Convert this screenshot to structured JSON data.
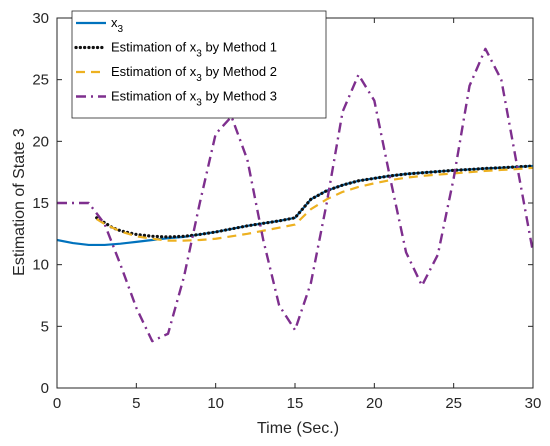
{
  "chart_data": {
    "type": "line",
    "title": "",
    "xlabel": "Time (Sec.)",
    "ylabel": "Estimation of State 3",
    "xlim": [
      0,
      30
    ],
    "ylim": [
      0,
      30
    ],
    "xticks": [
      0,
      5,
      10,
      15,
      20,
      25,
      30
    ],
    "yticks": [
      0,
      5,
      10,
      15,
      20,
      25,
      30
    ],
    "grid": false,
    "legend_position": "top-left",
    "series": [
      {
        "name": "x3",
        "legend_main": "x",
        "legend_sub": "3",
        "legend_after": "",
        "color": "#0072BD",
        "style": "solid",
        "points": [
          [
            0,
            12.0
          ],
          [
            1,
            11.75
          ],
          [
            2,
            11.6
          ],
          [
            3,
            11.6
          ],
          [
            4,
            11.7
          ],
          [
            5,
            11.85
          ],
          [
            6,
            12.0
          ],
          [
            7,
            12.15
          ],
          [
            8,
            12.25
          ],
          [
            9,
            12.45
          ],
          [
            10,
            12.65
          ],
          [
            11,
            12.9
          ],
          [
            12,
            13.15
          ],
          [
            13,
            13.35
          ],
          [
            14,
            13.55
          ],
          [
            15,
            13.8
          ],
          [
            16,
            15.3
          ],
          [
            17,
            16.0
          ],
          [
            18,
            16.45
          ],
          [
            19,
            16.8
          ],
          [
            20,
            17.0
          ],
          [
            21,
            17.2
          ],
          [
            22,
            17.35
          ],
          [
            23,
            17.45
          ],
          [
            24,
            17.55
          ],
          [
            25,
            17.65
          ],
          [
            26,
            17.72
          ],
          [
            27,
            17.8
          ],
          [
            28,
            17.86
          ],
          [
            29,
            17.93
          ],
          [
            30,
            18.0
          ]
        ]
      },
      {
        "name": "Estimation of x3 by Method 1",
        "legend_main": "Estimation of x",
        "legend_sub": "3",
        "legend_after": " by Method 1",
        "color": "#111111",
        "style": "dotted",
        "points": [
          [
            2.5,
            13.8
          ],
          [
            3,
            13.4
          ],
          [
            3.5,
            13.0
          ],
          [
            4,
            12.75
          ],
          [
            5,
            12.45
          ],
          [
            6,
            12.3
          ],
          [
            7,
            12.25
          ],
          [
            8,
            12.3
          ],
          [
            9,
            12.45
          ],
          [
            10,
            12.65
          ],
          [
            11,
            12.9
          ],
          [
            12,
            13.15
          ],
          [
            13,
            13.35
          ],
          [
            14,
            13.55
          ],
          [
            15,
            13.8
          ],
          [
            16,
            15.3
          ],
          [
            17,
            16.0
          ],
          [
            18,
            16.45
          ],
          [
            19,
            16.8
          ],
          [
            20,
            17.0
          ],
          [
            21,
            17.2
          ],
          [
            22,
            17.35
          ],
          [
            23,
            17.45
          ],
          [
            24,
            17.55
          ],
          [
            25,
            17.65
          ],
          [
            26,
            17.72
          ],
          [
            27,
            17.8
          ],
          [
            28,
            17.86
          ],
          [
            29,
            17.93
          ],
          [
            30,
            18.0
          ]
        ]
      },
      {
        "name": "Estimation of x3 by Method 2",
        "legend_main": "Estimation of x",
        "legend_sub": "3",
        "legend_after": " by Method 2",
        "color": "#EDB120",
        "style": "dashed",
        "points": [
          [
            2.5,
            13.7
          ],
          [
            3,
            13.3
          ],
          [
            4,
            12.7
          ],
          [
            5,
            12.3
          ],
          [
            6,
            12.1
          ],
          [
            7,
            11.95
          ],
          [
            8,
            11.95
          ],
          [
            9,
            12.0
          ],
          [
            10,
            12.1
          ],
          [
            11,
            12.3
          ],
          [
            12,
            12.5
          ],
          [
            13,
            12.75
          ],
          [
            14,
            13.0
          ],
          [
            15,
            13.25
          ],
          [
            16,
            14.5
          ],
          [
            17,
            15.3
          ],
          [
            18,
            15.9
          ],
          [
            19,
            16.3
          ],
          [
            20,
            16.6
          ],
          [
            21,
            16.85
          ],
          [
            22,
            17.05
          ],
          [
            23,
            17.2
          ],
          [
            24,
            17.3
          ],
          [
            25,
            17.4
          ],
          [
            26,
            17.5
          ],
          [
            27,
            17.6
          ],
          [
            28,
            17.68
          ],
          [
            29,
            17.75
          ],
          [
            30,
            17.85
          ]
        ]
      },
      {
        "name": "Estimation of x3 by Method 3",
        "legend_main": "Estimation of x",
        "legend_sub": "3",
        "legend_after": " by Method 3",
        "color": "#7E2F8E",
        "style": "dashdot",
        "points": [
          [
            0,
            15.0
          ],
          [
            2,
            15.0
          ],
          [
            3,
            13.3
          ],
          [
            4,
            10.0
          ],
          [
            5,
            6.5
          ],
          [
            6,
            3.8
          ],
          [
            7,
            4.4
          ],
          [
            8,
            9.0
          ],
          [
            9,
            15.0
          ],
          [
            10,
            20.6
          ],
          [
            11,
            22.0
          ],
          [
            12,
            18.5
          ],
          [
            13,
            12.0
          ],
          [
            14,
            6.7
          ],
          [
            15,
            4.7
          ],
          [
            16,
            8.5
          ],
          [
            17,
            15.0
          ],
          [
            18,
            22.4
          ],
          [
            19,
            25.4
          ],
          [
            20,
            23.3
          ],
          [
            21,
            17.0
          ],
          [
            22,
            11.0
          ],
          [
            23,
            8.3
          ],
          [
            24,
            10.8
          ],
          [
            25,
            17.0
          ],
          [
            26,
            24.5
          ],
          [
            27,
            27.5
          ],
          [
            28,
            25.0
          ],
          [
            29,
            18.0
          ],
          [
            30,
            11.0
          ]
        ]
      }
    ]
  }
}
